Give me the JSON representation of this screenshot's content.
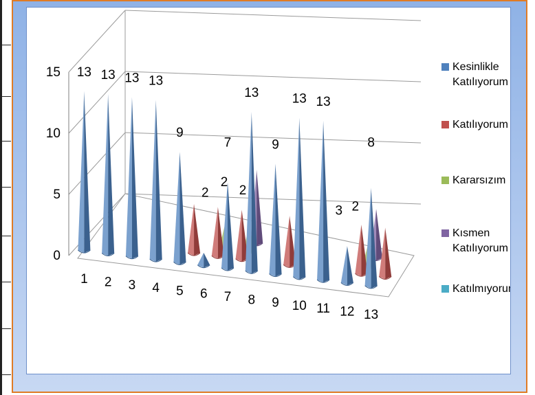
{
  "chart_data": {
    "type": "bar",
    "subtype": "3d-cone",
    "categories": [
      "1",
      "2",
      "3",
      "4",
      "5",
      "6",
      "7",
      "8",
      "9",
      "10",
      "11",
      "12",
      "13"
    ],
    "y_ticks": [
      "0",
      "5",
      "10",
      "15"
    ],
    "ylim": [
      0,
      15
    ],
    "grid": true,
    "legend_position": "right",
    "series": [
      {
        "name": "Kesinlikle Katılıyorum",
        "legend_line1": "Kesinlikle",
        "legend_line2": "Katılıyorum",
        "color": "#4f81bd",
        "values": [
          13,
          13,
          13,
          13,
          9,
          1,
          7,
          13,
          9,
          13,
          13,
          3,
          8
        ]
      },
      {
        "name": "Katılıyorum",
        "legend_line1": "Katılıyorum",
        "legend_line2": "",
        "color": "#c0504d",
        "values": [
          0,
          0,
          0,
          0,
          4,
          4,
          4,
          0,
          4,
          0,
          0,
          4,
          4
        ]
      },
      {
        "name": "Kararsızım",
        "legend_line1": "Kararsızım",
        "legend_line2": "",
        "color": "#9bbb59",
        "values": [
          0,
          0,
          0,
          0,
          0,
          2,
          2,
          0,
          0,
          0,
          0,
          2,
          0
        ]
      },
      {
        "name": "Kısmen Katılıyorum",
        "legend_line1": "Kısmen",
        "legend_line2": "Katılıyorum",
        "color": "#8064a2",
        "values": [
          0,
          0,
          0,
          0,
          0,
          0,
          6,
          0,
          0,
          0,
          0,
          4,
          0
        ]
      },
      {
        "name": "Katılmıyorum",
        "legend_line1": "Katılmıyorum",
        "legend_line2": "",
        "color": "#4bacc6",
        "values": [
          0,
          0,
          0,
          0,
          0,
          0,
          0,
          0,
          0,
          0,
          0,
          0,
          0
        ]
      }
    ],
    "data_labels": [
      {
        "text": "13"
      },
      {
        "text": "13"
      },
      {
        "text": "13"
      },
      {
        "text": "13"
      },
      {
        "text": "9"
      },
      {
        "text": "2"
      },
      {
        "text": "2"
      },
      {
        "text": "7"
      },
      {
        "text": "2"
      },
      {
        "text": "13"
      },
      {
        "text": "9"
      },
      {
        "text": "13"
      },
      {
        "text": "13"
      },
      {
        "text": "3"
      },
      {
        "text": "2"
      },
      {
        "text": "8"
      }
    ]
  }
}
